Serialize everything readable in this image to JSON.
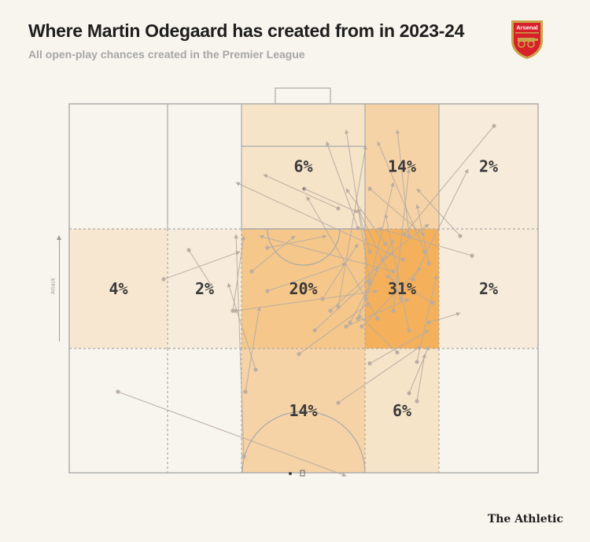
{
  "header": {
    "title": "Where Martin Odegaard has created from in 2023-24",
    "subtitle": "All open-play chances created in the Premier League"
  },
  "badge": {
    "text": "Arsenal",
    "icon": "arsenal-crest-icon",
    "red": "#d8202b",
    "gold": "#c9a44a"
  },
  "axis": {
    "direction_label": "Attack"
  },
  "footer": {
    "brand": "The Athletic"
  },
  "colors": {
    "background": "#f8f5ee",
    "line": "#a9a9a9",
    "arrow": "#b9ada1",
    "zone_base": "#f3a544"
  },
  "chart_data": {
    "type": "heatmap",
    "title": "Where Martin Odegaard has created from in 2023-24",
    "subtitle": "All open-play chances created in the Premier League",
    "grid": {
      "rows": 3,
      "cols": 5,
      "row_order": "attacking third to defensive third",
      "col_order": "left to right"
    },
    "zones": [
      {
        "row": 0,
        "col": 0,
        "pct": null
      },
      {
        "row": 0,
        "col": 1,
        "pct": null
      },
      {
        "row": 0,
        "col": 2,
        "pct": 6,
        "label": "6%"
      },
      {
        "row": 0,
        "col": 3,
        "pct": 14,
        "label": "14%"
      },
      {
        "row": 0,
        "col": 4,
        "pct": 2,
        "label": "2%"
      },
      {
        "row": 1,
        "col": 0,
        "pct": 4,
        "label": "4%"
      },
      {
        "row": 1,
        "col": 1,
        "pct": 2,
        "label": "2%"
      },
      {
        "row": 1,
        "col": 2,
        "pct": 20,
        "label": "20%"
      },
      {
        "row": 1,
        "col": 3,
        "pct": 31,
        "label": "31%"
      },
      {
        "row": 1,
        "col": 4,
        "pct": 2,
        "label": "2%"
      },
      {
        "row": 2,
        "col": 0,
        "pct": null
      },
      {
        "row": 2,
        "col": 1,
        "pct": null
      },
      {
        "row": 2,
        "col": 2,
        "pct": 14,
        "label": "14%"
      },
      {
        "row": 2,
        "col": 3,
        "pct": 6,
        "label": "6%"
      },
      {
        "row": 2,
        "col": 4,
        "pct": null
      }
    ],
    "legend": "none",
    "grid_lines": true
  }
}
